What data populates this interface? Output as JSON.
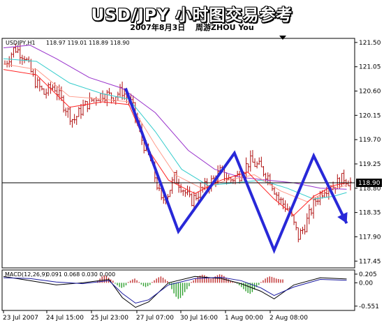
{
  "header": {
    "title": "USD/JPY 小时图交易参考",
    "subtitle": "2007年8月3日 　周游ZHOU You"
  },
  "colors": {
    "candle": "#b01010",
    "zigzag": "#2828d8",
    "ma_fast": "#ff2020",
    "ma_mid": "#ff9a8a",
    "ma_cyan": "#33cccc",
    "ma_slow": "#9933cc",
    "macd_pos": "#c03030",
    "macd_neg": "#30a030"
  },
  "chart_data": [
    {
      "type": "line",
      "symbol_label": "USDJPY,H1",
      "ohlc_readout": "118.97 119.01 118.89 118.90",
      "current_price": "118.90",
      "y_ticks": [
        121.5,
        121.05,
        120.6,
        120.15,
        119.7,
        119.25,
        118.8,
        118.35,
        117.9,
        117.45
      ],
      "y_tick_labels": [
        "121.50",
        "121.05",
        "120.60",
        "120.15",
        "119.70",
        "119.25",
        "118.80",
        "118.35",
        "117.90",
        "117.45"
      ],
      "ylim": [
        117.35,
        121.55
      ],
      "x_labels": [
        "23 Jul 2007",
        "24 Jul 15:00",
        "25 Jul 23:00",
        "27 Jul 07:00",
        "30 Jul 16:00",
        "1 Aug 00:00",
        "2 Aug 08:00"
      ],
      "price_path": [
        [
          0,
          121.1
        ],
        [
          3,
          121.4
        ],
        [
          6,
          121.25
        ],
        [
          9,
          120.8
        ],
        [
          12,
          120.55
        ],
        [
          15,
          120.7
        ],
        [
          18,
          120.35
        ],
        [
          21,
          120.05
        ],
        [
          24,
          120.3
        ],
        [
          27,
          120.45
        ],
        [
          30,
          120.55
        ],
        [
          33,
          120.5
        ],
        [
          36,
          120.6
        ],
        [
          39,
          120.35
        ],
        [
          42,
          119.7
        ],
        [
          45,
          119.25
        ],
        [
          48,
          118.55
        ],
        [
          50,
          118.7
        ],
        [
          52,
          119.0
        ],
        [
          54,
          118.85
        ],
        [
          57,
          118.55
        ],
        [
          60,
          118.75
        ],
        [
          63,
          118.9
        ],
        [
          66,
          119.1
        ],
        [
          69,
          118.95
        ],
        [
          72,
          119.05
        ],
        [
          75,
          119.3
        ],
        [
          78,
          119.2
        ],
        [
          81,
          119.0
        ],
        [
          84,
          118.6
        ],
        [
          87,
          118.4
        ],
        [
          90,
          117.9
        ],
        [
          92,
          118.1
        ],
        [
          95,
          118.55
        ],
        [
          98,
          118.8
        ],
        [
          101,
          118.85
        ],
        [
          104,
          119.0
        ],
        [
          106,
          118.9
        ]
      ],
      "zigzag": [
        [
          37,
          120.65
        ],
        [
          53,
          118.0
        ],
        [
          70,
          119.45
        ],
        [
          82,
          117.65
        ],
        [
          94,
          119.4
        ],
        [
          104,
          118.15
        ]
      ],
      "ma_paths": {
        "fast": [
          [
            0,
            121.0
          ],
          [
            10,
            120.9
          ],
          [
            20,
            120.3
          ],
          [
            30,
            120.4
          ],
          [
            38,
            120.35
          ],
          [
            44,
            119.5
          ],
          [
            50,
            118.95
          ],
          [
            58,
            118.7
          ],
          [
            66,
            118.95
          ],
          [
            74,
            119.1
          ],
          [
            82,
            118.6
          ],
          [
            88,
            118.3
          ],
          [
            94,
            118.65
          ],
          [
            100,
            118.85
          ],
          [
            104,
            118.9
          ]
        ],
        "mid": [
          [
            0,
            121.1
          ],
          [
            10,
            121.0
          ],
          [
            20,
            120.5
          ],
          [
            30,
            120.45
          ],
          [
            38,
            120.4
          ],
          [
            46,
            119.6
          ],
          [
            52,
            119.05
          ],
          [
            60,
            118.8
          ],
          [
            68,
            118.95
          ],
          [
            76,
            119.05
          ],
          [
            84,
            118.75
          ],
          [
            92,
            118.55
          ],
          [
            100,
            118.8
          ],
          [
            104,
            118.85
          ]
        ],
        "cyan": [
          [
            0,
            121.2
          ],
          [
            10,
            121.15
          ],
          [
            20,
            120.75
          ],
          [
            30,
            120.55
          ],
          [
            38,
            120.45
          ],
          [
            46,
            119.85
          ],
          [
            54,
            119.15
          ],
          [
            62,
            118.85
          ],
          [
            70,
            118.9
          ],
          [
            78,
            118.95
          ],
          [
            86,
            118.8
          ],
          [
            94,
            118.6
          ],
          [
            100,
            118.65
          ],
          [
            104,
            118.72
          ]
        ],
        "slow": [
          [
            0,
            121.4
          ],
          [
            8,
            121.45
          ],
          [
            16,
            121.2
          ],
          [
            26,
            120.85
          ],
          [
            36,
            120.65
          ],
          [
            46,
            120.2
          ],
          [
            56,
            119.5
          ],
          [
            64,
            119.15
          ],
          [
            72,
            119.0
          ],
          [
            80,
            118.95
          ],
          [
            88,
            118.9
          ],
          [
            96,
            118.8
          ],
          [
            104,
            118.78
          ]
        ]
      }
    },
    {
      "type": "bar",
      "indicator_label": "MACD(12,26,9)",
      "indicator_values": "0.091 0.068 0.030 0.000",
      "y_ticks": [
        0.205,
        0.0,
        -0.551
      ],
      "y_tick_labels": [
        "0.205",
        "0.00",
        "-0.551"
      ],
      "ylim": [
        -0.62,
        0.27
      ],
      "histogram": [
        0.05,
        0.1,
        0.15,
        0.18,
        0.16,
        0.12,
        0.08,
        0.05,
        -0.02,
        -0.06,
        -0.1,
        -0.12,
        -0.1,
        -0.06,
        0.02,
        0.05,
        0.08,
        0.1,
        0.06,
        0.02,
        -0.04,
        -0.08,
        -0.1,
        -0.08,
        -0.05,
        0.02,
        0.06,
        0.1,
        0.13,
        0.15,
        0.12,
        0.08,
        0.04,
        -0.05,
        -0.15,
        -0.25,
        -0.33,
        -0.38,
        -0.36,
        -0.3,
        -0.22,
        -0.15,
        -0.08,
        0.02,
        0.06,
        0.1,
        0.14,
        0.17,
        0.19,
        0.18,
        0.15,
        0.12,
        0.1,
        0.12,
        0.15,
        0.18,
        0.2,
        0.19,
        0.16,
        0.12,
        0.08,
        0.05,
        0.03,
        0.02,
        -0.02,
        -0.06,
        -0.1,
        -0.15,
        -0.2,
        -0.24,
        -0.26,
        -0.22,
        -0.16,
        -0.1,
        -0.05,
        0.02,
        0.06,
        0.1,
        0.13,
        0.15,
        0.14,
        0.12,
        0.1,
        0.09,
        0.08,
        0.08
      ],
      "signal_path": [
        [
          0,
          0.12
        ],
        [
          8,
          0.1
        ],
        [
          16,
          0.02
        ],
        [
          24,
          -0.02
        ],
        [
          32,
          0.05
        ],
        [
          36,
          -0.25
        ],
        [
          40,
          -0.48
        ],
        [
          44,
          -0.4
        ],
        [
          50,
          -0.05
        ],
        [
          58,
          0.1
        ],
        [
          66,
          0.13
        ],
        [
          72,
          0.05
        ],
        [
          78,
          -0.12
        ],
        [
          82,
          -0.3
        ],
        [
          88,
          -0.1
        ],
        [
          96,
          0.08
        ],
        [
          104,
          0.06
        ]
      ],
      "macd_path": [
        [
          0,
          0.15
        ],
        [
          8,
          0.05
        ],
        [
          16,
          -0.05
        ],
        [
          24,
          0.0
        ],
        [
          32,
          0.08
        ],
        [
          36,
          -0.35
        ],
        [
          40,
          -0.58
        ],
        [
          44,
          -0.45
        ],
        [
          50,
          0.0
        ],
        [
          58,
          0.15
        ],
        [
          66,
          0.1
        ],
        [
          72,
          -0.02
        ],
        [
          78,
          -0.2
        ],
        [
          82,
          -0.38
        ],
        [
          88,
          -0.05
        ],
        [
          96,
          0.12
        ],
        [
          104,
          0.09
        ]
      ]
    }
  ]
}
